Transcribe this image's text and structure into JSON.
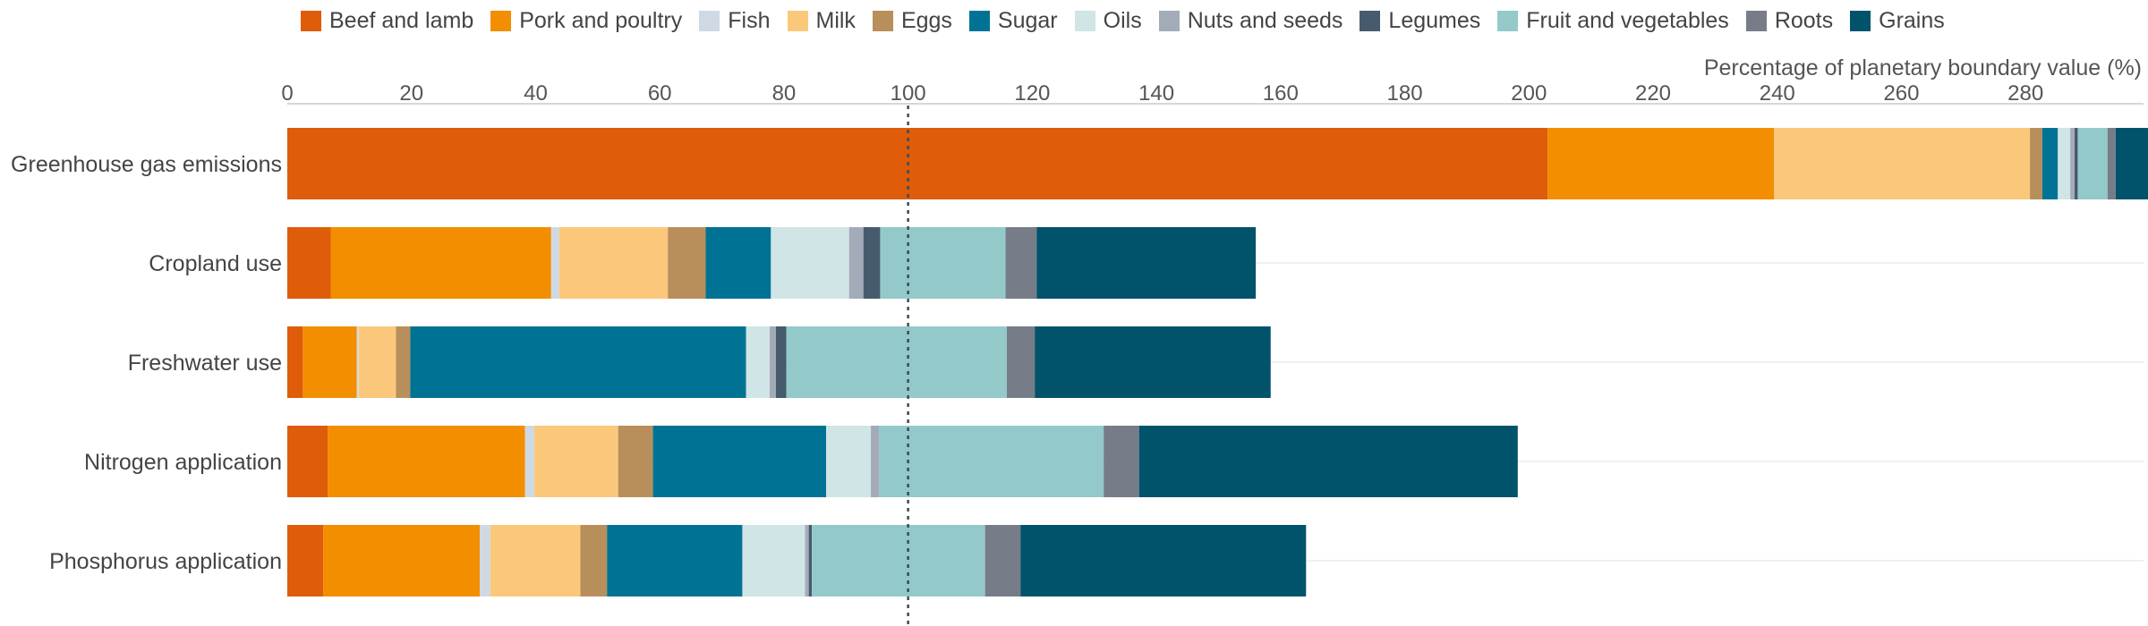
{
  "chart_data": {
    "type": "bar",
    "orientation": "horizontal",
    "stacked": true,
    "categories": [
      "Greenhouse gas emissions",
      "Cropland use",
      "Freshwater use",
      "Nitrogen application",
      "Phosphorus application"
    ],
    "series": [
      {
        "name": "Beef and lamb",
        "color": "#de5c0a",
        "values": [
          203,
          7,
          2.5,
          6.5,
          5.8
        ]
      },
      {
        "name": "Pork and poultry",
        "color": "#f28e00",
        "values": [
          36.5,
          35.5,
          8.7,
          31.8,
          25.2
        ]
      },
      {
        "name": "Fish",
        "color": "#cfd9e3",
        "values": [
          0,
          1.3,
          0.3,
          1.5,
          1.7
        ]
      },
      {
        "name": "Milk",
        "color": "#fbc87b",
        "values": [
          41.2,
          17.5,
          6,
          13.5,
          14.5
        ]
      },
      {
        "name": "Eggs",
        "color": "#b88f5b",
        "values": [
          2,
          6.1,
          2.3,
          5.6,
          4.3
        ]
      },
      {
        "name": "Sugar",
        "color": "#007394",
        "values": [
          2.5,
          10.5,
          54.1,
          27.9,
          21.8
        ]
      },
      {
        "name": "Oils",
        "color": "#d0e5e5",
        "values": [
          2,
          12.6,
          3.8,
          7.2,
          10.1
        ]
      },
      {
        "name": "Nuts and seeds",
        "color": "#a4abb8",
        "values": [
          0.7,
          2.3,
          1,
          1.3,
          0.6
        ]
      },
      {
        "name": "Legumes",
        "color": "#465b6e",
        "values": [
          0.5,
          2.7,
          1.7,
          0,
          0.5
        ]
      },
      {
        "name": "Fruit and vegetables",
        "color": "#94c9c9",
        "values": [
          4.8,
          20.2,
          35.5,
          36.2,
          27.9
        ]
      },
      {
        "name": "Roots",
        "color": "#767d88",
        "values": [
          1.3,
          5,
          4.5,
          5.7,
          5.7
        ]
      },
      {
        "name": "Grains",
        "color": "#00536a",
        "values": [
          5.5,
          35.3,
          38,
          61,
          46
        ]
      }
    ],
    "xaxis_title": "Percentage of planetary boundary value (%)",
    "xticks": [
      0,
      20,
      40,
      60,
      80,
      100,
      120,
      140,
      160,
      180,
      200,
      220,
      240,
      260,
      280
    ],
    "xlim": [
      0,
      299
    ],
    "reference_line": 100,
    "legend_position": "top"
  }
}
